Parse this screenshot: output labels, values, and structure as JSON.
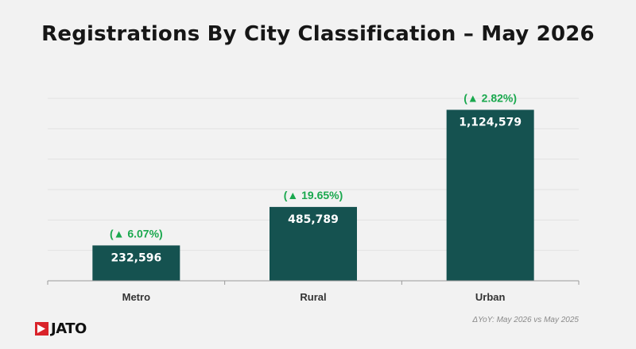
{
  "chart_data": {
    "type": "bar",
    "title": "Registrations By City Classification – May 2026",
    "categories": [
      "Metro",
      "Rural",
      "Urban"
    ],
    "values": [
      232596,
      485789,
      1124579
    ],
    "value_labels": [
      "232,596",
      "485,789",
      "1,124,579"
    ],
    "change_labels": [
      "(▲ 6.07%)",
      "(▲ 19.65%)",
      "(▲ 2.82%)"
    ],
    "ylim": [
      0,
      1200000
    ],
    "grid": true,
    "colors": {
      "bar": "#155250",
      "change": "#1aa84e",
      "grid": "#e2e2e2",
      "axis": "#9a9a9a"
    }
  },
  "footnote": "ΔYoY: May 2026 vs May 2025",
  "logo": {
    "text": "JATO",
    "color": "#d9232a"
  }
}
